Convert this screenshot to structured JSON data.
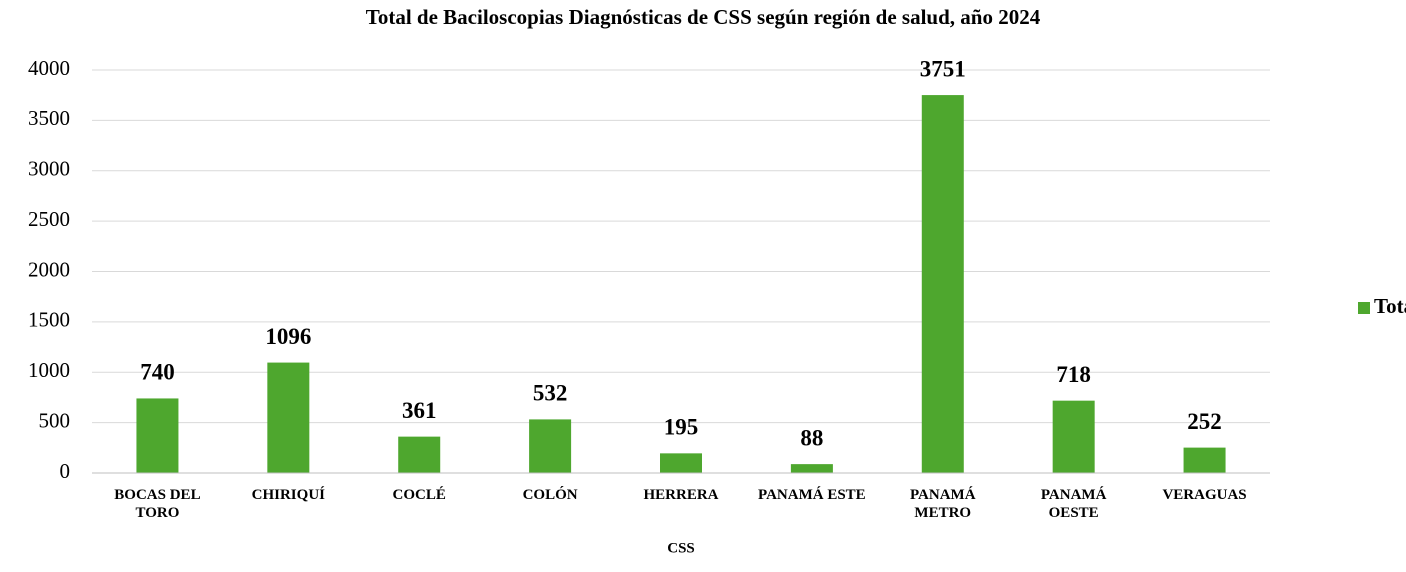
{
  "chart_data": {
    "type": "bar",
    "title": "Total de Baciloscopias Diagnósticas de CSS según región de salud, año 2024",
    "x_label": "CSS",
    "categories": [
      "BOCAS DEL TORO",
      "CHIRIQUÍ",
      "COCLÉ",
      "COLÓN",
      "HERRERA",
      "PANAMÁ ESTE",
      "PANAMÁ METRO",
      "PANAMÁ OESTE",
      "VERAGUAS"
    ],
    "series": [
      {
        "name": "Total",
        "color": "#4ea72e",
        "values": [
          740,
          1096,
          361,
          532,
          195,
          88,
          3751,
          718,
          252
        ]
      }
    ],
    "ylim": [
      0,
      4000
    ],
    "yticks": [
      0,
      500,
      1000,
      1500,
      2000,
      2500,
      3000,
      3500,
      4000
    ],
    "grid": true,
    "legend": "right"
  }
}
